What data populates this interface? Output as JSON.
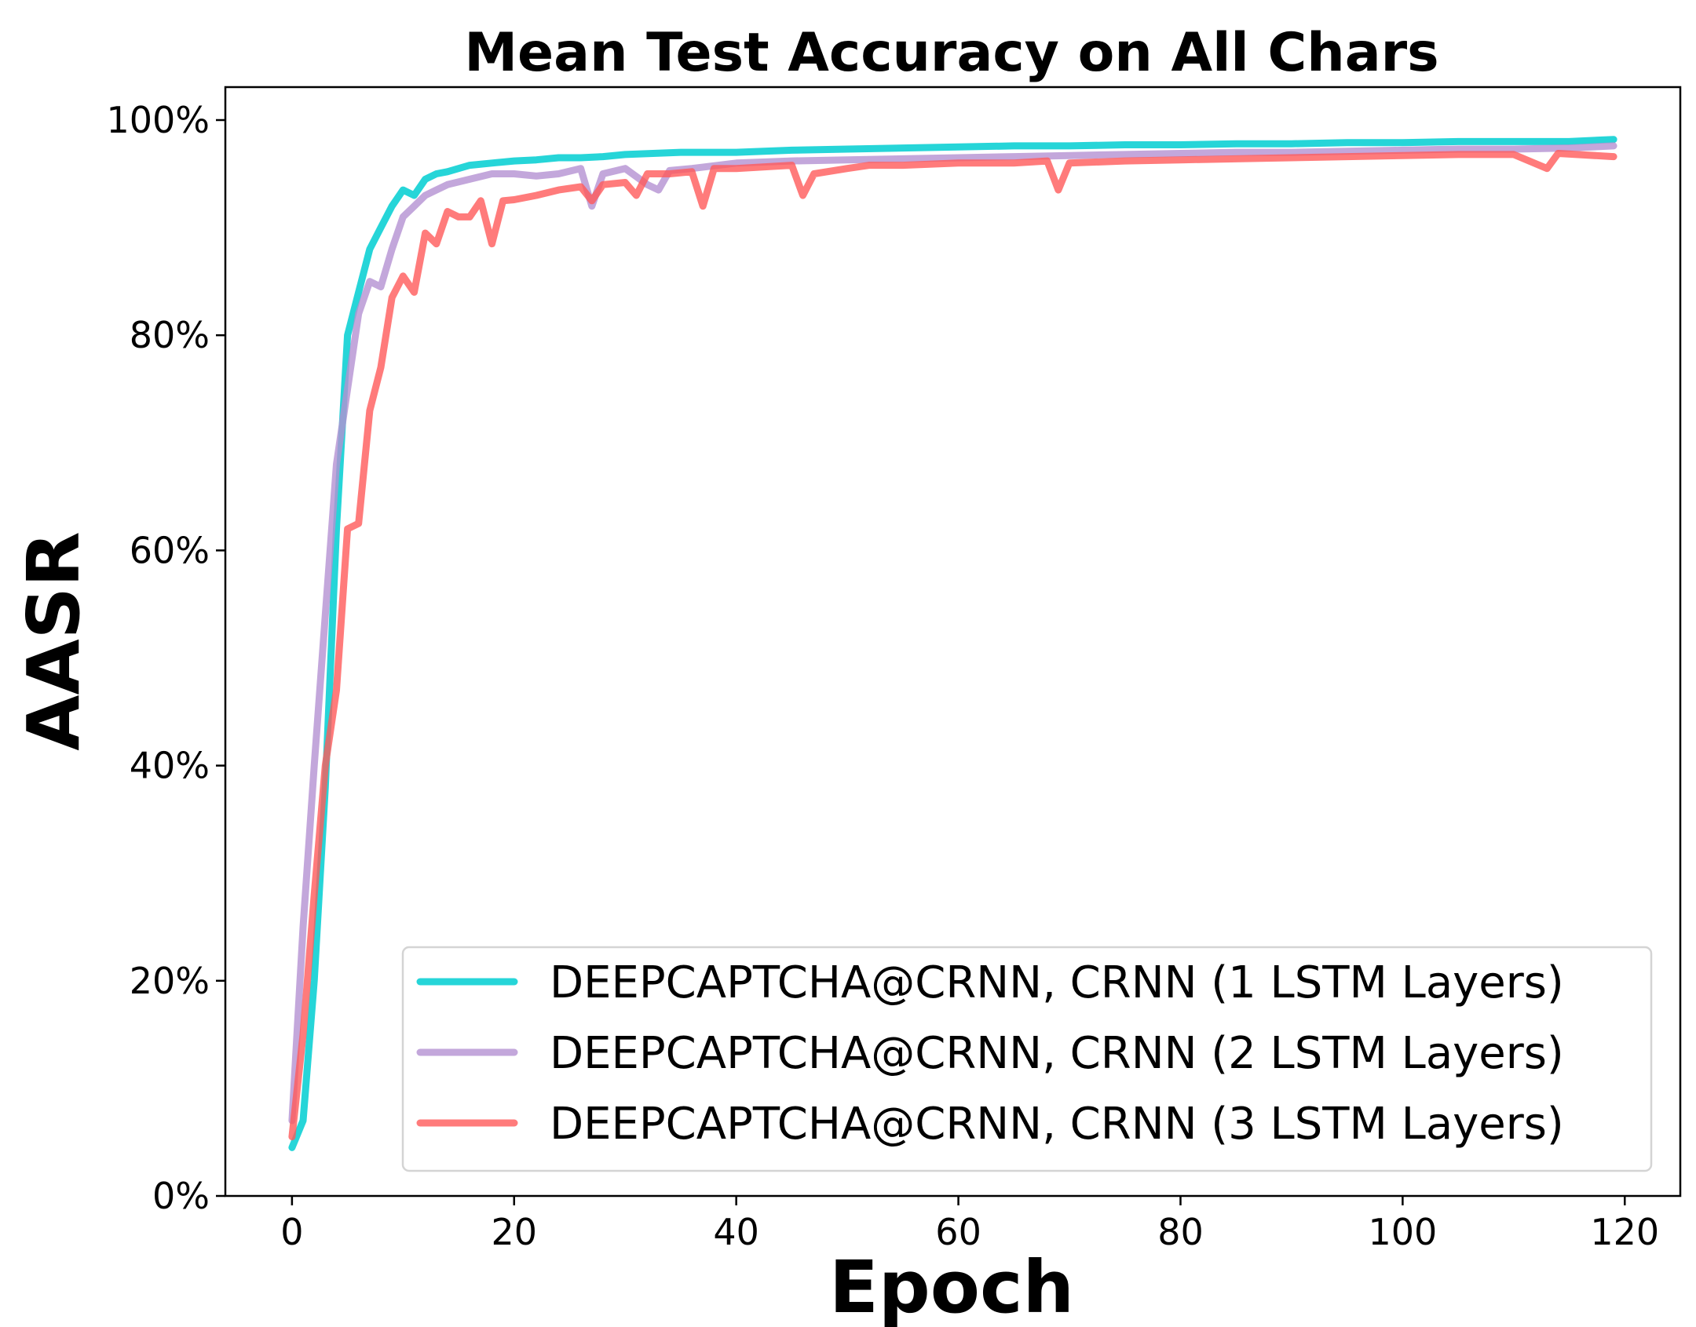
{
  "chart_data": {
    "type": "line",
    "title": "Mean Test Accuracy on All Chars",
    "xlabel": "Epoch",
    "ylabel": "AASR",
    "xlim": [
      -6,
      125
    ],
    "ylim": [
      0,
      100
    ],
    "xticks": [
      0,
      20,
      40,
      60,
      80,
      100,
      120
    ],
    "yticks": [
      0,
      20,
      40,
      60,
      80,
      100
    ],
    "ytick_format": "percent",
    "grid": false,
    "legend_position": "lower-right",
    "series": [
      {
        "name": "DEEPCAPTCHA@CRNN, CRNN (1 LSTM Layers)",
        "color": "#00CED1",
        "opacity": 0.85,
        "keypoints": [
          [
            0,
            4.5
          ],
          [
            1,
            7
          ],
          [
            2,
            20
          ],
          [
            3,
            38
          ],
          [
            4,
            62
          ],
          [
            5,
            80
          ],
          [
            6,
            84
          ],
          [
            7,
            88
          ],
          [
            8,
            90
          ],
          [
            9,
            92
          ],
          [
            10,
            93.5
          ],
          [
            11,
            93
          ],
          [
            12,
            94.5
          ],
          [
            13,
            95
          ],
          [
            14,
            95.2
          ],
          [
            16,
            95.8
          ],
          [
            18,
            96
          ],
          [
            20,
            96.2
          ],
          [
            22,
            96.3
          ],
          [
            24,
            96.5
          ],
          [
            26,
            96.5
          ],
          [
            28,
            96.6
          ],
          [
            30,
            96.8
          ],
          [
            35,
            97
          ],
          [
            40,
            97
          ],
          [
            45,
            97.2
          ],
          [
            50,
            97.3
          ],
          [
            55,
            97.4
          ],
          [
            60,
            97.5
          ],
          [
            65,
            97.6
          ],
          [
            70,
            97.6
          ],
          [
            75,
            97.7
          ],
          [
            80,
            97.7
          ],
          [
            85,
            97.8
          ],
          [
            90,
            97.8
          ],
          [
            95,
            97.9
          ],
          [
            100,
            97.9
          ],
          [
            105,
            98
          ],
          [
            110,
            98
          ],
          [
            115,
            98
          ],
          [
            119,
            98.2
          ]
        ]
      },
      {
        "name": "DEEPCAPTCHA@CRNN, CRNN (2 LSTM Layers)",
        "color": "#B491D2",
        "opacity": 0.8,
        "keypoints": [
          [
            0,
            7
          ],
          [
            1,
            25
          ],
          [
            2,
            40
          ],
          [
            3,
            54
          ],
          [
            4,
            68
          ],
          [
            5,
            75
          ],
          [
            6,
            82
          ],
          [
            7,
            85
          ],
          [
            8,
            84.5
          ],
          [
            9,
            88
          ],
          [
            10,
            91
          ],
          [
            11,
            92
          ],
          [
            12,
            93
          ],
          [
            13,
            93.5
          ],
          [
            14,
            94
          ],
          [
            16,
            94.5
          ],
          [
            18,
            95
          ],
          [
            20,
            95
          ],
          [
            22,
            94.8
          ],
          [
            24,
            95
          ],
          [
            26,
            95.5
          ],
          [
            27,
            92
          ],
          [
            28,
            95
          ],
          [
            30,
            95.5
          ],
          [
            32,
            94
          ],
          [
            33,
            93.5
          ],
          [
            34,
            95.3
          ],
          [
            36,
            95.5
          ],
          [
            40,
            96
          ],
          [
            45,
            96.2
          ],
          [
            50,
            96.3
          ],
          [
            55,
            96.4
          ],
          [
            60,
            96.5
          ],
          [
            65,
            96.6
          ],
          [
            70,
            96.7
          ],
          [
            75,
            96.8
          ],
          [
            80,
            96.9
          ],
          [
            85,
            97
          ],
          [
            90,
            97
          ],
          [
            95,
            97.1
          ],
          [
            100,
            97.2
          ],
          [
            105,
            97.3
          ],
          [
            110,
            97.3
          ],
          [
            115,
            97.4
          ],
          [
            119,
            97.6
          ]
        ]
      },
      {
        "name": "DEEPCAPTCHA@CRNN, CRNN (3 LSTM Layers)",
        "color": "#FF5A5A",
        "opacity": 0.8,
        "keypoints": [
          [
            0,
            5.5
          ],
          [
            1,
            15
          ],
          [
            2,
            28
          ],
          [
            3,
            40
          ],
          [
            4,
            47
          ],
          [
            5,
            62
          ],
          [
            6,
            62.5
          ],
          [
            7,
            73
          ],
          [
            8,
            77
          ],
          [
            9,
            83.5
          ],
          [
            10,
            85.5
          ],
          [
            11,
            84
          ],
          [
            12,
            89.5
          ],
          [
            13,
            88.5
          ],
          [
            14,
            91.5
          ],
          [
            15,
            91
          ],
          [
            16,
            91
          ],
          [
            17,
            92.5
          ],
          [
            18,
            88.5
          ],
          [
            19,
            92.5
          ],
          [
            20,
            92.6
          ],
          [
            22,
            93
          ],
          [
            24,
            93.5
          ],
          [
            26,
            93.8
          ],
          [
            27,
            92.5
          ],
          [
            28,
            94
          ],
          [
            30,
            94.2
          ],
          [
            31,
            93
          ],
          [
            32,
            95
          ],
          [
            34,
            95
          ],
          [
            36,
            95.2
          ],
          [
            37,
            92
          ],
          [
            38,
            95.5
          ],
          [
            40,
            95.5
          ],
          [
            45,
            95.8
          ],
          [
            46,
            93
          ],
          [
            47,
            95
          ],
          [
            50,
            95.5
          ],
          [
            52,
            95.8
          ],
          [
            55,
            95.8
          ],
          [
            60,
            96
          ],
          [
            65,
            96
          ],
          [
            68,
            96.2
          ],
          [
            69,
            93.5
          ],
          [
            70,
            96
          ],
          [
            75,
            96.2
          ],
          [
            80,
            96.3
          ],
          [
            85,
            96.4
          ],
          [
            90,
            96.5
          ],
          [
            95,
            96.6
          ],
          [
            100,
            96.7
          ],
          [
            105,
            96.8
          ],
          [
            110,
            96.8
          ],
          [
            113,
            95.5
          ],
          [
            114,
            96.9
          ],
          [
            119,
            96.6
          ]
        ]
      }
    ]
  }
}
